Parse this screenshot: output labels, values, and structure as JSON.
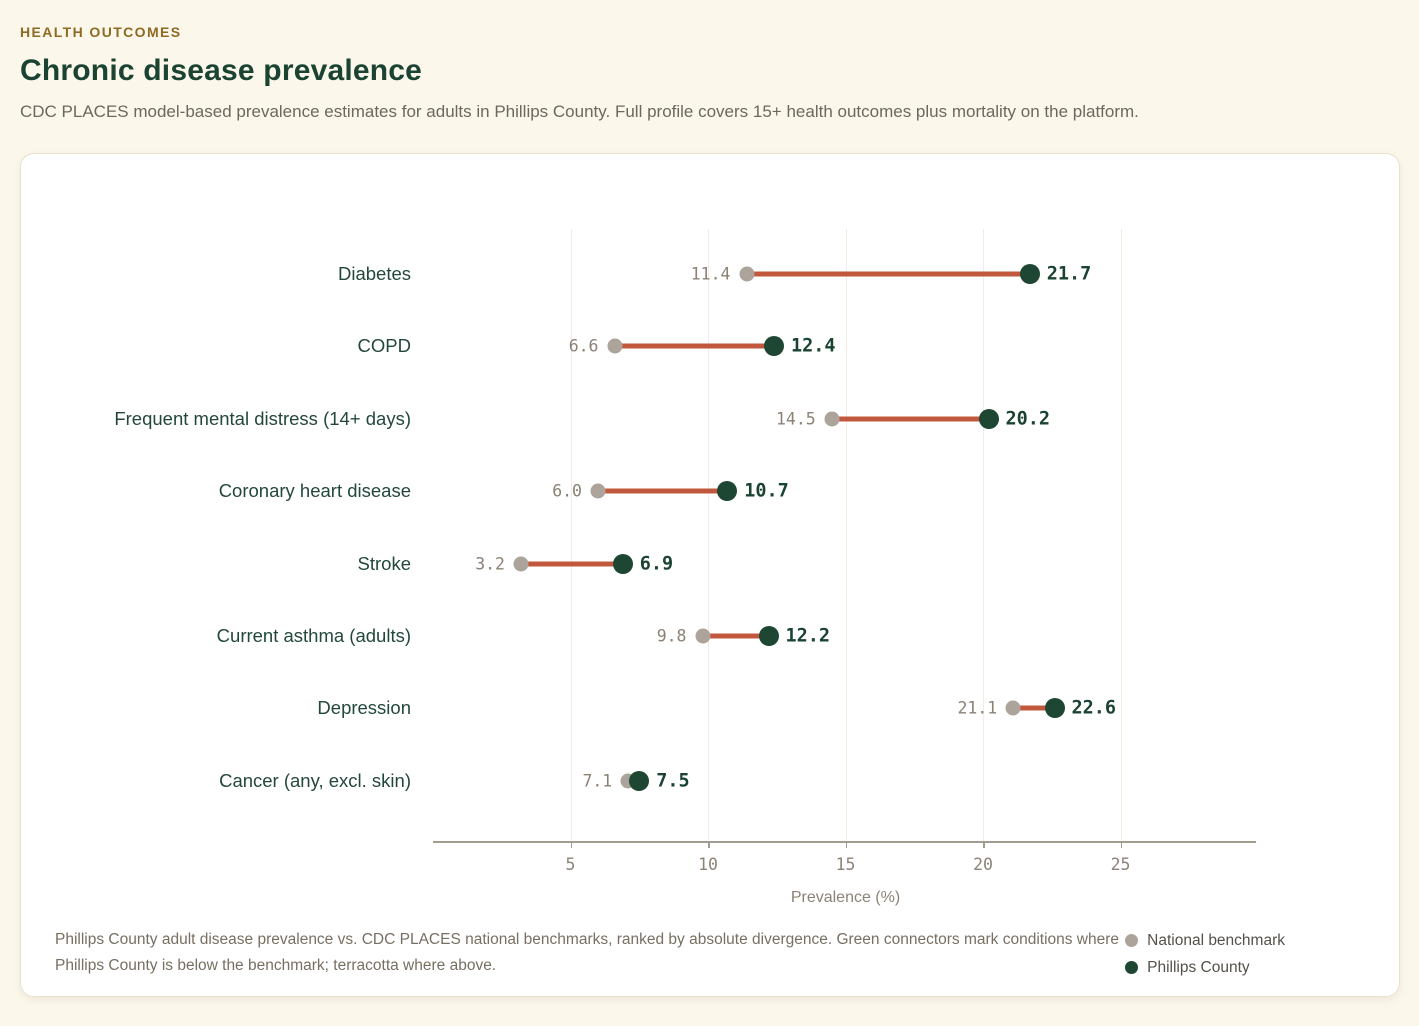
{
  "page": {
    "eyebrow": "HEALTH OUTCOMES",
    "title": "Chronic disease prevalence",
    "subtitle": "CDC PLACES model-based prevalence estimates for adults in Phillips County. Full profile covers 15+ health outcomes plus mortality on the platform."
  },
  "colors": {
    "background": "#FBF7EB",
    "card": "#FFFFFF",
    "eyebrow": "#8E6A22",
    "title_green": "#1B4332",
    "benchmark_dot": "#ACA49A",
    "county_dot": "#1D4732",
    "connector_above": "#C1583E",
    "connector_below": "#1D4732",
    "gridline": "#F1EDE3",
    "axis": "#A29C91"
  },
  "chart_data": {
    "type": "dumbbell",
    "categories": [
      "Diabetes",
      "COPD",
      "Frequent mental distress (14+ days)",
      "Coronary heart disease",
      "Stroke",
      "Current asthma (adults)",
      "Depression",
      "Cancer (any, excl. skin)"
    ],
    "series": [
      {
        "name": "National benchmark",
        "values": [
          11.4,
          6.6,
          14.5,
          6.0,
          3.2,
          9.8,
          21.1,
          7.1
        ]
      },
      {
        "name": "Phillips County",
        "values": [
          21.7,
          12.4,
          20.2,
          10.7,
          6.9,
          12.2,
          22.6,
          7.5
        ]
      }
    ],
    "xlabel": "Prevalence (%)",
    "xlim": [
      0,
      30
    ],
    "xticks": [
      5,
      10,
      15,
      20,
      25
    ],
    "grid": "vertical",
    "legend_position": "bottom-right",
    "value_label_decimals": 1
  },
  "footnote": "Phillips County adult disease prevalence vs. CDC PLACES national benchmarks, ranked by absolute divergence. Green connectors mark conditions where Phillips County is below the benchmark; terracotta where above.",
  "legend": {
    "items": [
      {
        "label": "National benchmark",
        "color": "#ACA49A"
      },
      {
        "label": "Phillips County",
        "color": "#1D4732"
      }
    ]
  }
}
